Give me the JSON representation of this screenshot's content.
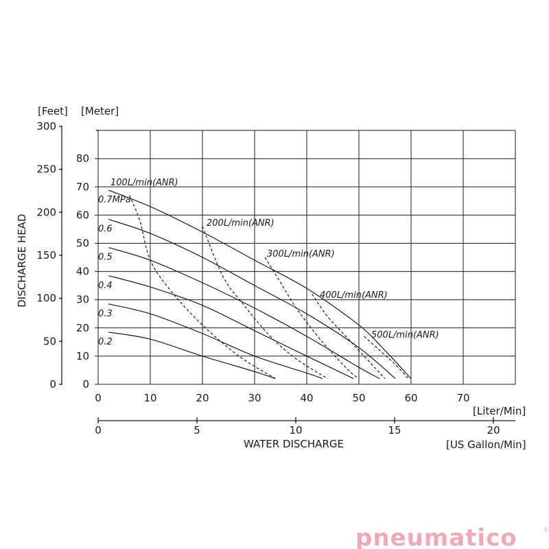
{
  "chart_data": {
    "type": "line",
    "x_primary": {
      "label": "[Liter/Min]",
      "ticks": [
        0,
        10,
        20,
        30,
        40,
        50,
        60,
        70
      ],
      "range": [
        0,
        80
      ]
    },
    "x_secondary": {
      "label": "[US Gallon/Min]",
      "title": "WATER DISCHARGE",
      "ticks": [
        0,
        5,
        10,
        15,
        20
      ],
      "range": [
        0,
        21.13
      ]
    },
    "y_primary": {
      "label": "[Meter]",
      "ticks": [
        0,
        10,
        20,
        30,
        40,
        50,
        60,
        70,
        80
      ],
      "range": [
        0,
        90
      ]
    },
    "y_secondary": {
      "label": "[Feet]",
      "title": "DISCHARGE HEAD",
      "ticks": [
        0,
        50,
        100,
        150,
        200,
        250,
        300
      ],
      "range": [
        0,
        300
      ]
    },
    "grid": true,
    "series": [
      {
        "name": "0.7MPa",
        "x": [
          2,
          10,
          20,
          30,
          40,
          50,
          55,
          60
        ],
        "y": [
          68.8,
          63,
          54,
          44,
          34,
          21,
          12,
          2
        ]
      },
      {
        "name": "0.6",
        "x": [
          2,
          10,
          20,
          30,
          40,
          50,
          57
        ],
        "y": [
          58.5,
          53.5,
          45,
          35,
          25,
          13,
          2
        ]
      },
      {
        "name": "0.5",
        "x": [
          2,
          10,
          20,
          30,
          40,
          50,
          54
        ],
        "y": [
          48.5,
          44,
          36,
          27,
          17,
          6,
          2
        ]
      },
      {
        "name": "0.4",
        "x": [
          2,
          10,
          20,
          30,
          40,
          49
        ],
        "y": [
          38.5,
          34.5,
          28,
          19,
          10,
          2
        ]
      },
      {
        "name": "0.3",
        "x": [
          2,
          10,
          20,
          30,
          40,
          43
        ],
        "y": [
          28.5,
          25,
          18,
          10,
          4,
          2
        ]
      },
      {
        "name": "0.2",
        "x": [
          2,
          10,
          20,
          30,
          34
        ],
        "y": [
          18.5,
          16,
          10,
          4.5,
          2
        ]
      }
    ],
    "air_consumption": [
      {
        "name": "100L/min(ANR)",
        "x": [
          6,
          8,
          10,
          14,
          20,
          27,
          34
        ],
        "y": [
          67,
          58,
          44,
          33,
          21,
          10,
          2
        ]
      },
      {
        "name": "200L/min(ANR)",
        "x": [
          20,
          24,
          28,
          33,
          38,
          44
        ],
        "y": [
          56,
          38,
          28,
          17,
          9,
          2
        ]
      },
      {
        "name": "300L/min(ANR)",
        "x": [
          32,
          35,
          38,
          43,
          48,
          50
        ],
        "y": [
          45,
          36,
          27,
          15,
          5,
          2
        ]
      },
      {
        "name": "400L/min(ANR)",
        "x": [
          41,
          44,
          48,
          52,
          55
        ],
        "y": [
          32,
          24,
          16,
          8,
          2
        ]
      },
      {
        "name": "500L/min(ANR)",
        "x": [
          51,
          54,
          57,
          59.5
        ],
        "y": [
          17,
          12,
          7,
          2
        ]
      }
    ],
    "legend": "inline"
  },
  "brand": {
    "name": "pneumatico",
    "registered": "®",
    "color": "#f2a9b6"
  }
}
